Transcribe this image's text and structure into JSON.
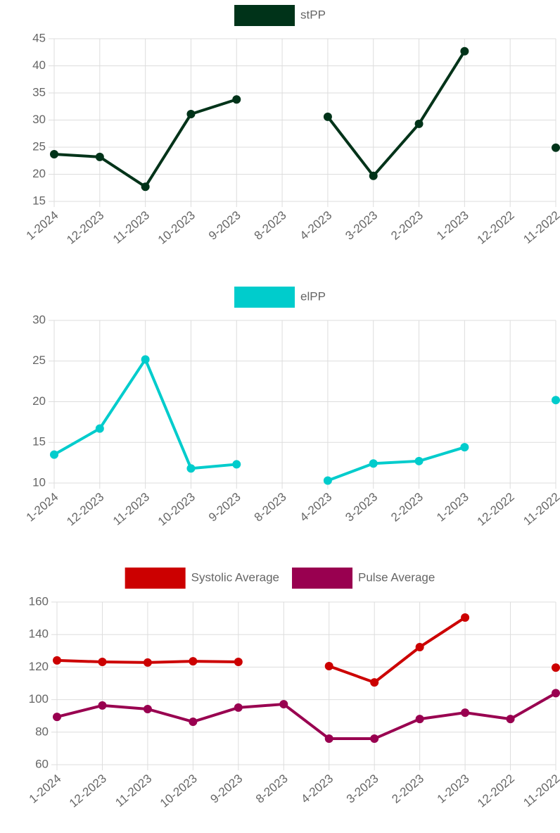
{
  "charts": [
    {
      "chart_data": {
        "type": "line",
        "categories": [
          "1-2024",
          "12-2023",
          "11-2023",
          "10-2023",
          "9-2023",
          "8-2023",
          "4-2023",
          "3-2023",
          "2-2023",
          "1-2023",
          "12-2022",
          "11-2022"
        ],
        "series": [
          {
            "name": "stPP",
            "color": "#003319",
            "values": [
              23.7,
              23.2,
              17.7,
              31.1,
              33.8,
              null,
              30.6,
              19.7,
              29.3,
              42.7,
              null,
              24.9
            ]
          }
        ],
        "ylim": [
          15,
          45
        ],
        "yticks": [
          15,
          20,
          25,
          30,
          35,
          40,
          45
        ],
        "grid": true
      }
    },
    {
      "chart_data": {
        "type": "line",
        "categories": [
          "1-2024",
          "12-2023",
          "11-2023",
          "10-2023",
          "9-2023",
          "8-2023",
          "4-2023",
          "3-2023",
          "2-2023",
          "1-2023",
          "12-2022",
          "11-2022"
        ],
        "series": [
          {
            "name": "elPP",
            "color": "#00cccc",
            "values": [
              13.5,
              16.7,
              25.2,
              11.8,
              12.3,
              null,
              10.3,
              12.4,
              12.7,
              14.4,
              null,
              20.2
            ]
          }
        ],
        "ylim": [
          10,
          30
        ],
        "yticks": [
          10,
          15,
          20,
          25,
          30
        ],
        "grid": true
      }
    },
    {
      "chart_data": {
        "type": "line",
        "categories": [
          "1-2024",
          "12-2023",
          "11-2023",
          "10-2023",
          "9-2023",
          "8-2023",
          "4-2023",
          "3-2023",
          "2-2023",
          "1-2023",
          "12-2022",
          "11-2022"
        ],
        "series": [
          {
            "name": "Systolic Average",
            "color": "#cc0000",
            "values": [
              124.1,
              123.2,
              122.8,
              123.6,
              123.2,
              null,
              120.6,
              110.6,
              132.3,
              150.5,
              null,
              119.7
            ]
          },
          {
            "name": "Pulse Average",
            "color": "#990050",
            "values": [
              89.4,
              96.4,
              94.2,
              86.4,
              95.1,
              97.2,
              76,
              76,
              88.1,
              92,
              88.1,
              104
            ]
          }
        ],
        "ylim": [
          60,
          160
        ],
        "yticks": [
          60,
          80,
          100,
          120,
          140,
          160
        ],
        "grid": true
      }
    }
  ]
}
